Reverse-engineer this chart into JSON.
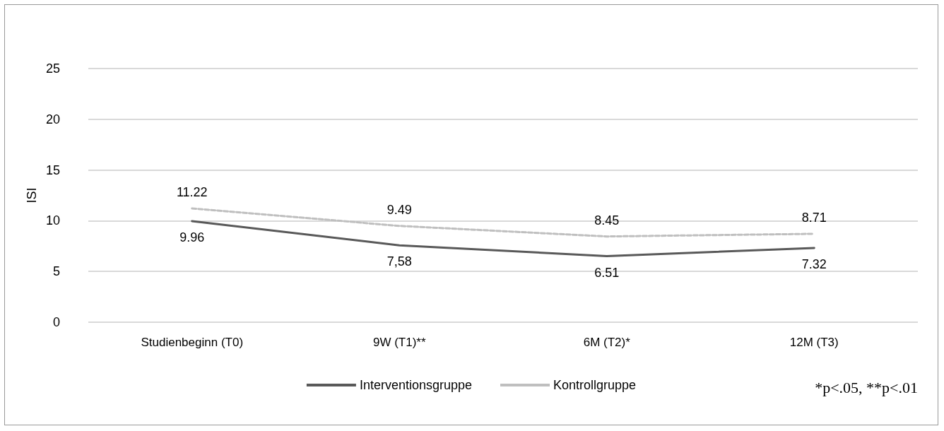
{
  "chart_data": {
    "type": "line",
    "ylabel": "ISI",
    "categories": [
      "Studienbeginn (T0)",
      "9W (T1)**",
      "6M (T2)*",
      "12M (T3)"
    ],
    "series": [
      {
        "name": "Interventionsgruppe",
        "color": "#595959",
        "values": [
          9.96,
          7.58,
          6.51,
          7.32
        ],
        "value_labels": [
          "9.96",
          "7,58",
          "6.51",
          "7.32"
        ],
        "line_style": "solid"
      },
      {
        "name": "Kontrollgruppe",
        "color": "#bfbfbf",
        "values": [
          11.22,
          9.49,
          8.45,
          8.71
        ],
        "value_labels": [
          "11.22",
          "9.49",
          "8.45",
          "8.71"
        ],
        "line_style": "dashed"
      }
    ],
    "ylim": [
      0,
      25
    ],
    "yticks": [
      0,
      5,
      10,
      15,
      20,
      25
    ],
    "grid": "y",
    "legend": "bottom",
    "marker": "none",
    "annotations": [
      "*p<.05, **p<.01"
    ]
  }
}
